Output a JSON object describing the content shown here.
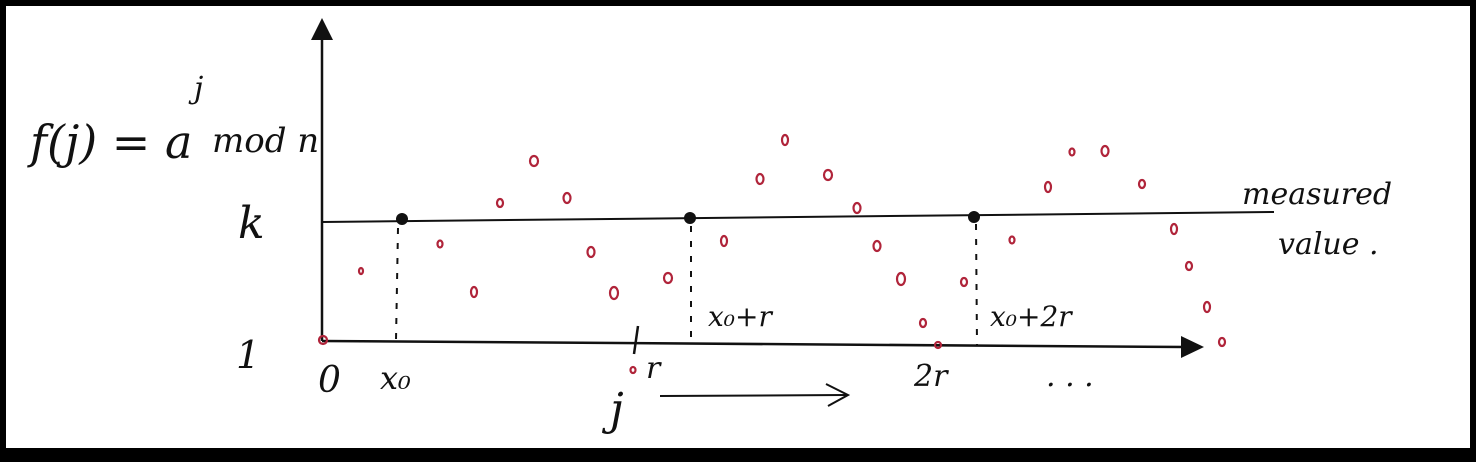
{
  "labels": {
    "function": "f(j) = a",
    "exponent": "j",
    "function_tail": "mod n",
    "k": "k",
    "one": "1",
    "origin": "0",
    "x0": "x₀",
    "r": "r",
    "two_r": "2r",
    "x0_plus_r": "x₀+r",
    "x0_plus_2r": "x₀+2r",
    "ellipsis": ". . .",
    "j_axis": "j",
    "measured_line1": "measured",
    "measured_line2": "value ."
  },
  "colors": {
    "ink": "#111111",
    "points": "#b0243a",
    "background": "#ffffff",
    "border": "#000000"
  }
}
